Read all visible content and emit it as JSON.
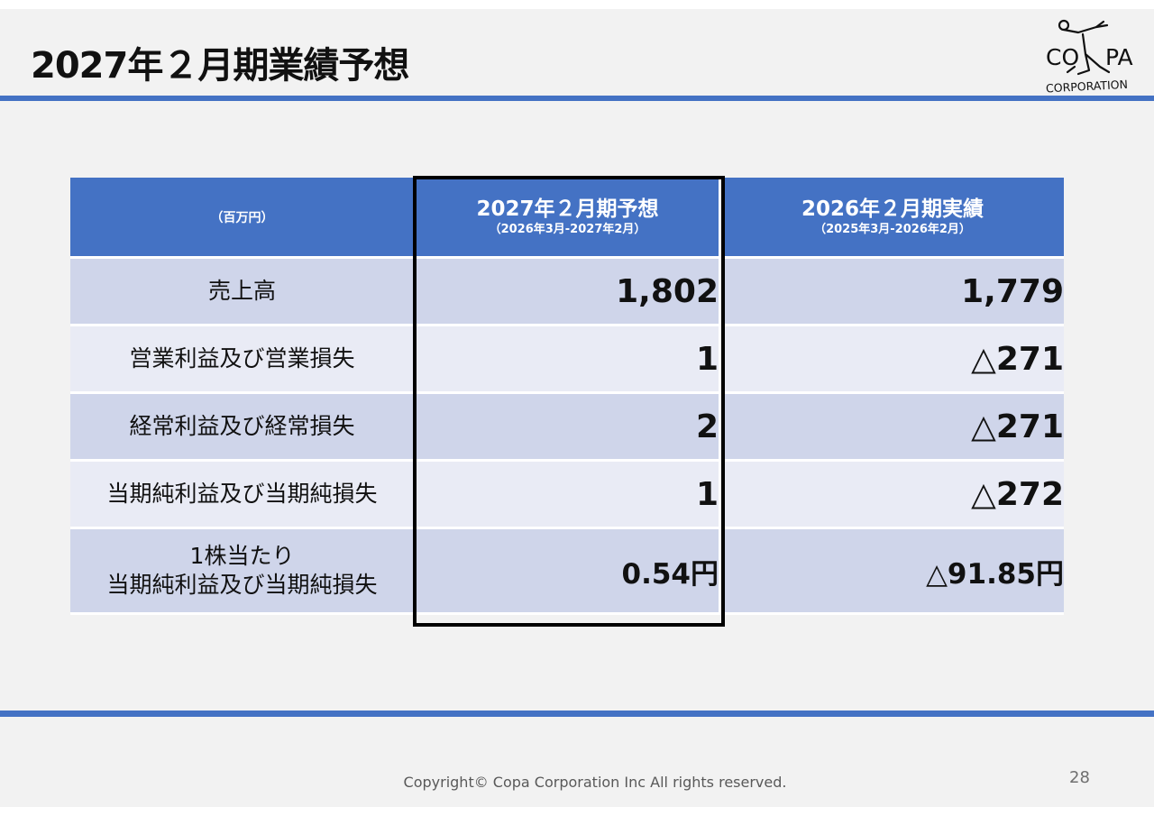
{
  "slide": {
    "title": "2027年２月期業績予想",
    "logo": {
      "line1_left": "CO",
      "line1_right": "PA",
      "line2": "CORPORATION"
    },
    "footer": "Copyright© Copa Corporation Inc All rights reserved.",
    "page_number": "28"
  },
  "table": {
    "header": {
      "unit": "（百万円）",
      "col1_title": "2027年２月期予想",
      "col1_sub": "（2026年3月-2027年2月）",
      "col2_title": "2026年２月期実績",
      "col2_sub": "（2025年3月-2026年2月）"
    },
    "rows": [
      {
        "label": "売上高",
        "forecast": "1,802",
        "actual": "1,779"
      },
      {
        "label": "営業利益及び営業損失",
        "forecast": "1",
        "actual": "△271"
      },
      {
        "label": "経常利益及び経常損失",
        "forecast": "2",
        "actual": "△271"
      },
      {
        "label": "当期純利益及び当期純損失",
        "forecast": "1",
        "actual": "△272"
      },
      {
        "label_line1": "1株当たり",
        "label_line2": "当期純利益及び当期純損失",
        "forecast": "0.54円",
        "actual": "△91.85円"
      }
    ]
  },
  "colors": {
    "accent": "#4472c4",
    "row_dark": "#cfd5ea",
    "row_light": "#e9ebf5"
  }
}
